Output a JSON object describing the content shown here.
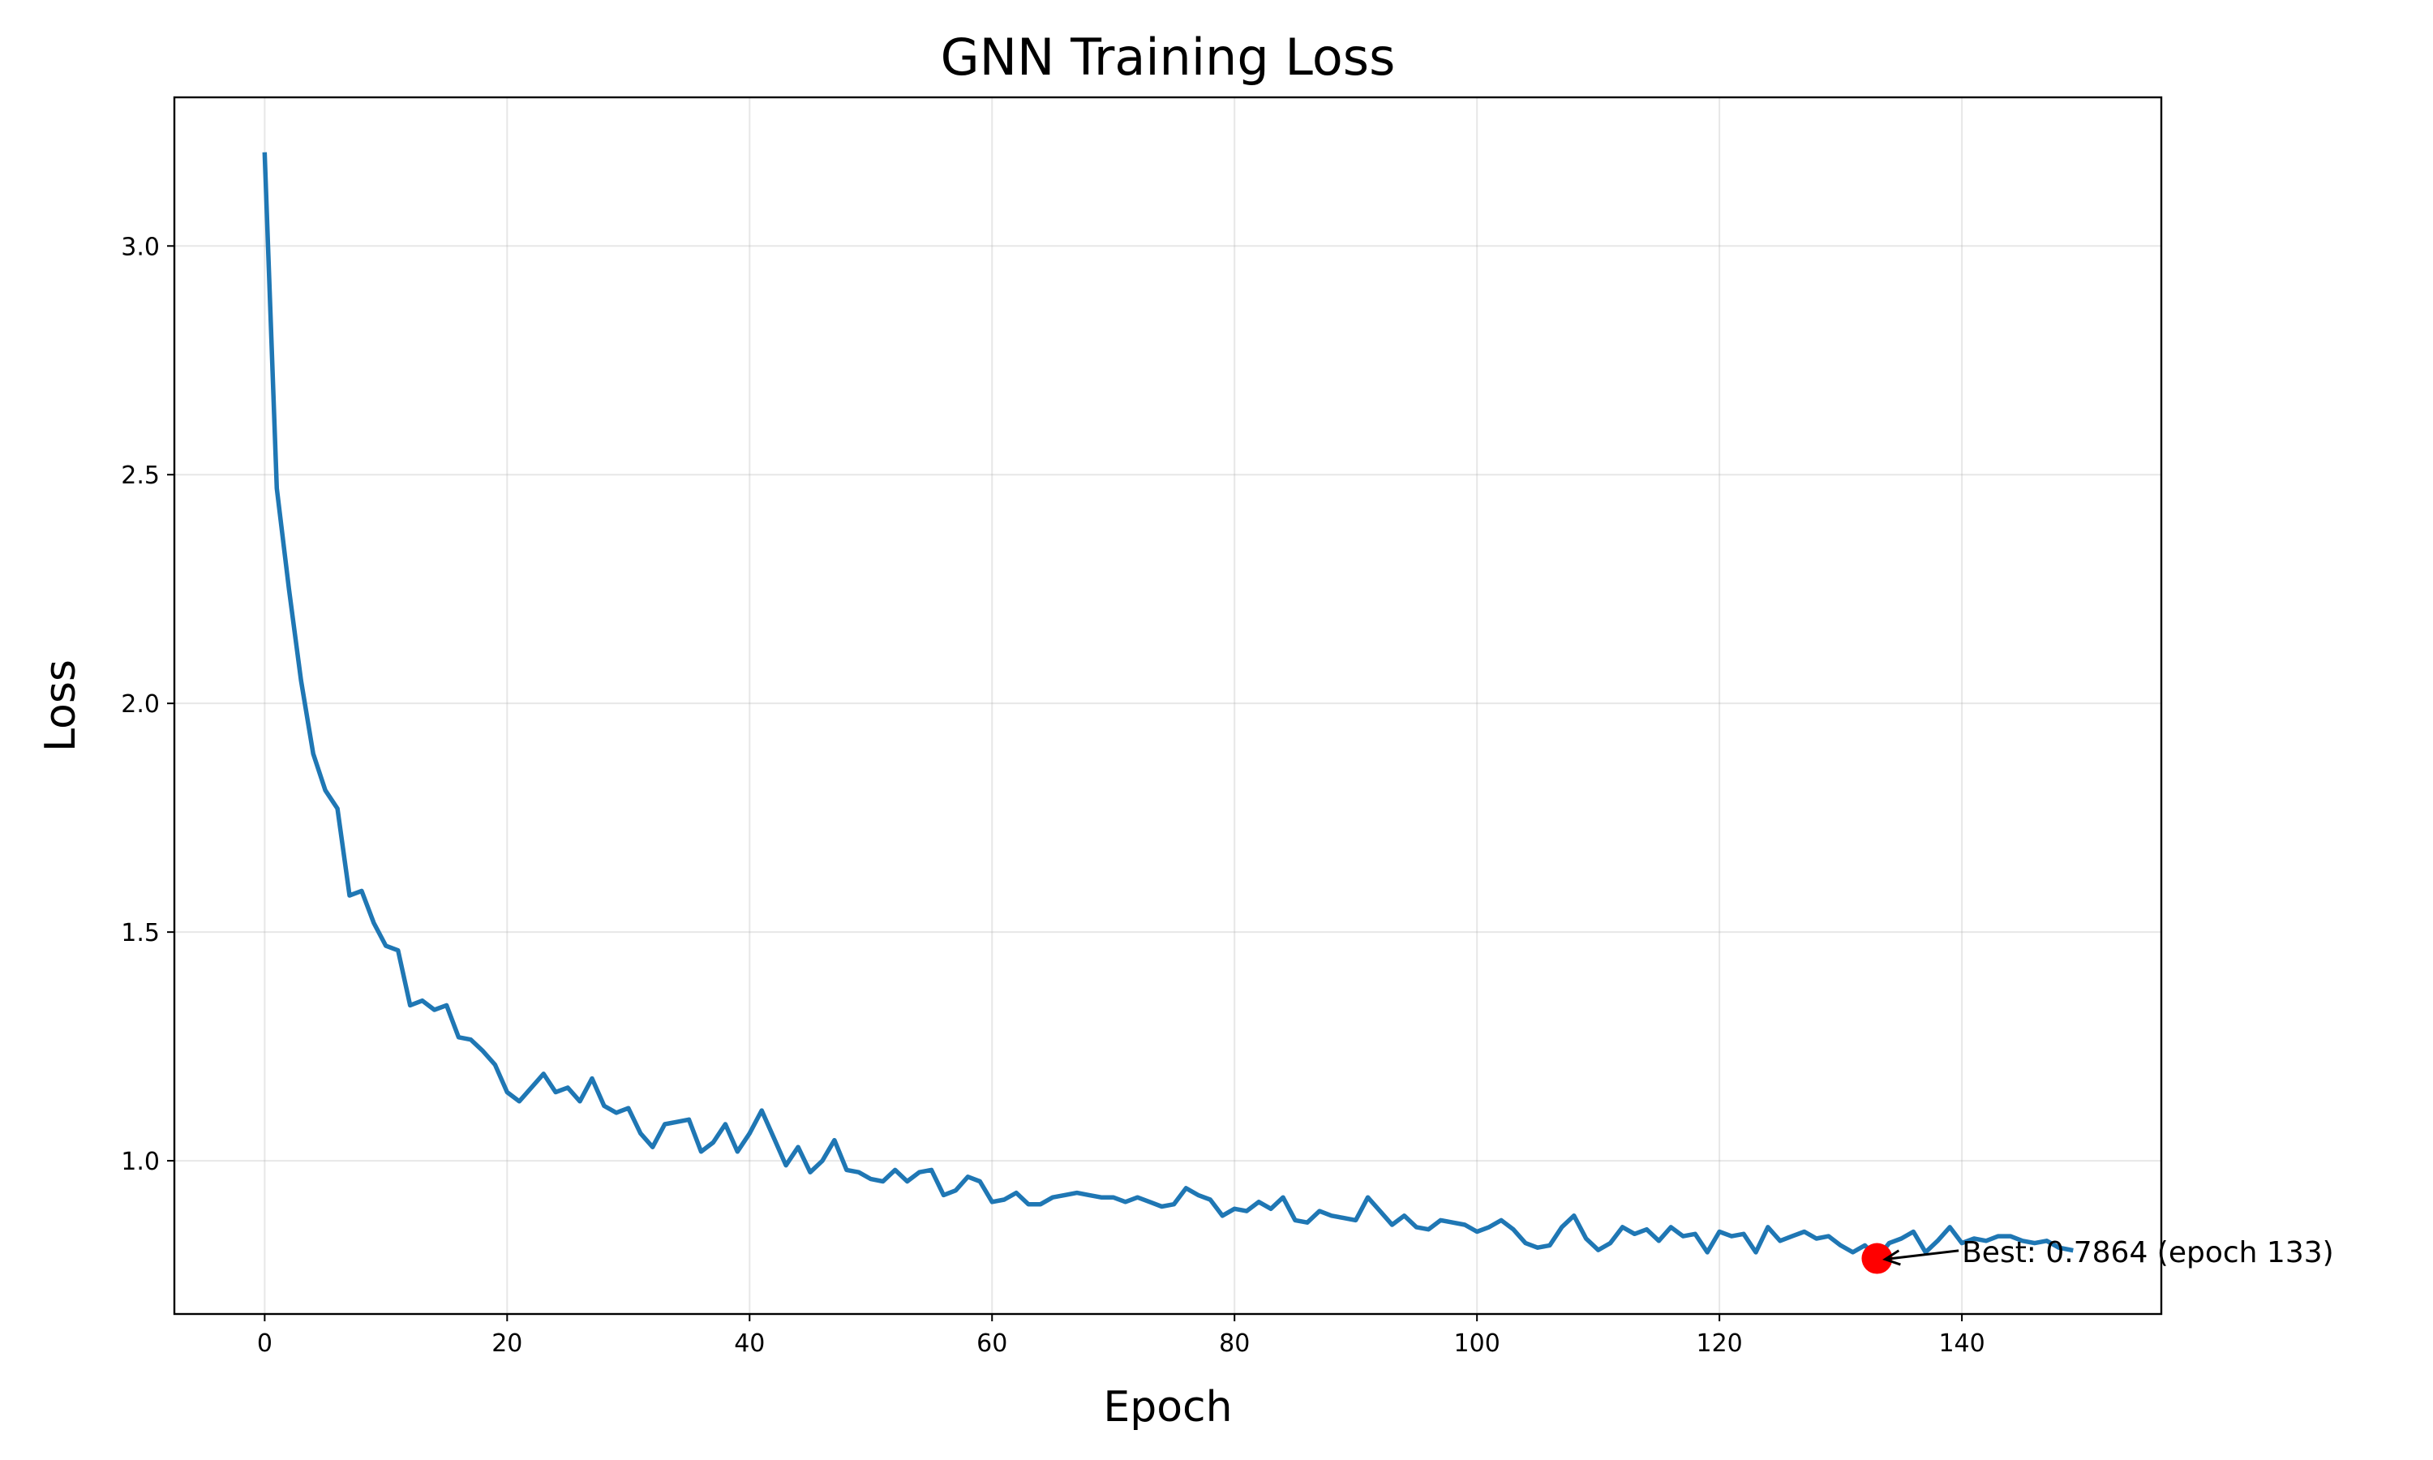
{
  "chart_data": {
    "type": "line",
    "title": "GNN Training Loss",
    "xlabel": "Epoch",
    "ylabel": "Loss",
    "xlim": [
      -7.45,
      156.45
    ],
    "ylim": [
      0.665,
      3.325
    ],
    "xticks": [
      0,
      20,
      40,
      60,
      80,
      100,
      120,
      140
    ],
    "yticks": [
      1.0,
      1.5,
      2.0,
      2.5,
      3.0
    ],
    "xtick_labels": [
      "0",
      "20",
      "40",
      "60",
      "80",
      "100",
      "120",
      "140"
    ],
    "ytick_labels": [
      "1.0",
      "1.5",
      "2.0",
      "2.5",
      "3.0"
    ],
    "grid": true,
    "series": [
      {
        "color": "#1f77b4",
        "x": [
          0,
          1,
          2,
          3,
          4,
          5,
          6,
          7,
          8,
          9,
          10,
          11,
          12,
          13,
          14,
          15,
          16,
          17,
          18,
          19,
          20,
          21,
          22,
          23,
          24,
          25,
          26,
          27,
          28,
          29,
          30,
          31,
          32,
          33,
          34,
          35,
          36,
          37,
          38,
          39,
          40,
          41,
          42,
          43,
          44,
          45,
          46,
          47,
          48,
          49,
          50,
          51,
          52,
          53,
          54,
          55,
          56,
          57,
          58,
          59,
          60,
          61,
          62,
          63,
          64,
          65,
          66,
          67,
          68,
          69,
          70,
          71,
          72,
          73,
          74,
          75,
          76,
          77,
          78,
          79,
          80,
          81,
          82,
          83,
          84,
          85,
          86,
          87,
          88,
          89,
          90,
          91,
          92,
          93,
          94,
          95,
          96,
          97,
          98,
          99,
          100,
          101,
          102,
          103,
          104,
          105,
          106,
          107,
          108,
          109,
          110,
          111,
          112,
          113,
          114,
          115,
          116,
          117,
          118,
          119,
          120,
          121,
          122,
          123,
          124,
          125,
          126,
          127,
          128,
          129,
          130,
          131,
          132,
          133,
          134,
          135,
          136,
          137,
          138,
          139,
          140,
          141,
          142,
          143,
          144,
          145,
          146,
          147,
          148,
          149
        ],
        "y": [
          3.2,
          2.47,
          2.25,
          2.05,
          1.89,
          1.81,
          1.77,
          1.58,
          1.59,
          1.52,
          1.47,
          1.46,
          1.34,
          1.35,
          1.33,
          1.34,
          1.27,
          1.265,
          1.24,
          1.21,
          1.15,
          1.13,
          1.16,
          1.19,
          1.15,
          1.16,
          1.13,
          1.18,
          1.12,
          1.105,
          1.115,
          1.06,
          1.03,
          1.08,
          1.085,
          1.09,
          1.02,
          1.04,
          1.08,
          1.02,
          1.06,
          1.11,
          1.05,
          0.99,
          1.03,
          0.975,
          1.0,
          1.045,
          0.98,
          0.975,
          0.96,
          0.955,
          0.98,
          0.955,
          0.975,
          0.98,
          0.925,
          0.935,
          0.965,
          0.955,
          0.91,
          0.915,
          0.93,
          0.905,
          0.905,
          0.92,
          0.925,
          0.93,
          0.925,
          0.92,
          0.92,
          0.91,
          0.92,
          0.91,
          0.9,
          0.905,
          0.94,
          0.925,
          0.915,
          0.88,
          0.895,
          0.89,
          0.91,
          0.895,
          0.92,
          0.87,
          0.865,
          0.89,
          0.88,
          0.875,
          0.87,
          0.92,
          0.89,
          0.86,
          0.88,
          0.855,
          0.85,
          0.87,
          0.865,
          0.86,
          0.845,
          0.855,
          0.87,
          0.85,
          0.82,
          0.81,
          0.815,
          0.855,
          0.88,
          0.83,
          0.805,
          0.82,
          0.855,
          0.84,
          0.85,
          0.825,
          0.855,
          0.835,
          0.84,
          0.8,
          0.845,
          0.835,
          0.84,
          0.8,
          0.855,
          0.825,
          0.835,
          0.845,
          0.83,
          0.835,
          0.815,
          0.8,
          0.815,
          0.7864,
          0.82,
          0.83,
          0.845,
          0.8,
          0.825,
          0.855,
          0.82,
          0.83,
          0.825,
          0.835,
          0.835,
          0.825,
          0.82,
          0.825,
          0.81,
          0.805
        ]
      }
    ],
    "best_point": {
      "x": 133,
      "y": 0.7864,
      "color": "#ff0000"
    },
    "annotation": {
      "text": "Best: 0.7864 (epoch 133)",
      "x": 140,
      "y": 0.8
    }
  }
}
